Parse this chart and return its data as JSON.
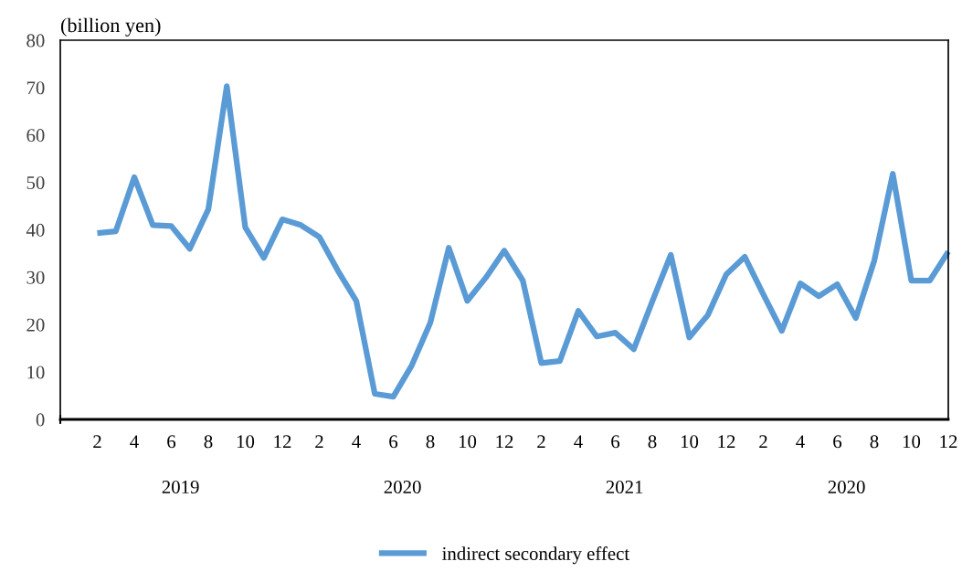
{
  "chart_data": {
    "type": "line",
    "ylabel": "(billion yen)",
    "categories": [
      null,
      null,
      "2",
      null,
      "4",
      null,
      "6",
      null,
      "8",
      null,
      "10",
      null,
      "12",
      null,
      "2",
      null,
      "4",
      null,
      "6",
      null,
      "8",
      null,
      "10",
      null,
      "12",
      null,
      "2",
      null,
      "4",
      null,
      "6",
      null,
      "8",
      null,
      "10",
      null,
      "12",
      null,
      "2",
      null,
      "4",
      null,
      "6",
      null,
      "8",
      null,
      "10",
      null,
      "12"
    ],
    "series": [
      {
        "name": "indirect secondary effect",
        "color": "#5b9bd5",
        "values": [
          null,
          null,
          39.3,
          39.7,
          51.1,
          41.0,
          40.8,
          36.0,
          44.3,
          70.3,
          40.5,
          34.1,
          42.2,
          41.0,
          38.5,
          31.4,
          25.0,
          5.4,
          4.8,
          11.4,
          20.4,
          36.2,
          25.0,
          29.9,
          35.6,
          29.3,
          11.9,
          12.3,
          22.9,
          17.5,
          18.3,
          14.8,
          24.9,
          34.7,
          17.3,
          22.0,
          30.6,
          34.3,
          26.4,
          18.7,
          28.7,
          26.0,
          28.5,
          21.4,
          33.5,
          51.8,
          29.3,
          29.3,
          35.4
        ]
      }
    ],
    "ylim": [
      0,
      80
    ],
    "yticks": [
      0,
      10,
      20,
      30,
      40,
      50,
      60,
      70,
      80
    ],
    "annotations": [
      "2019",
      "2020",
      "2021",
      "2020"
    ],
    "grid": false,
    "legend": "bottom",
    "marker": "none",
    "line_style": "solid"
  }
}
